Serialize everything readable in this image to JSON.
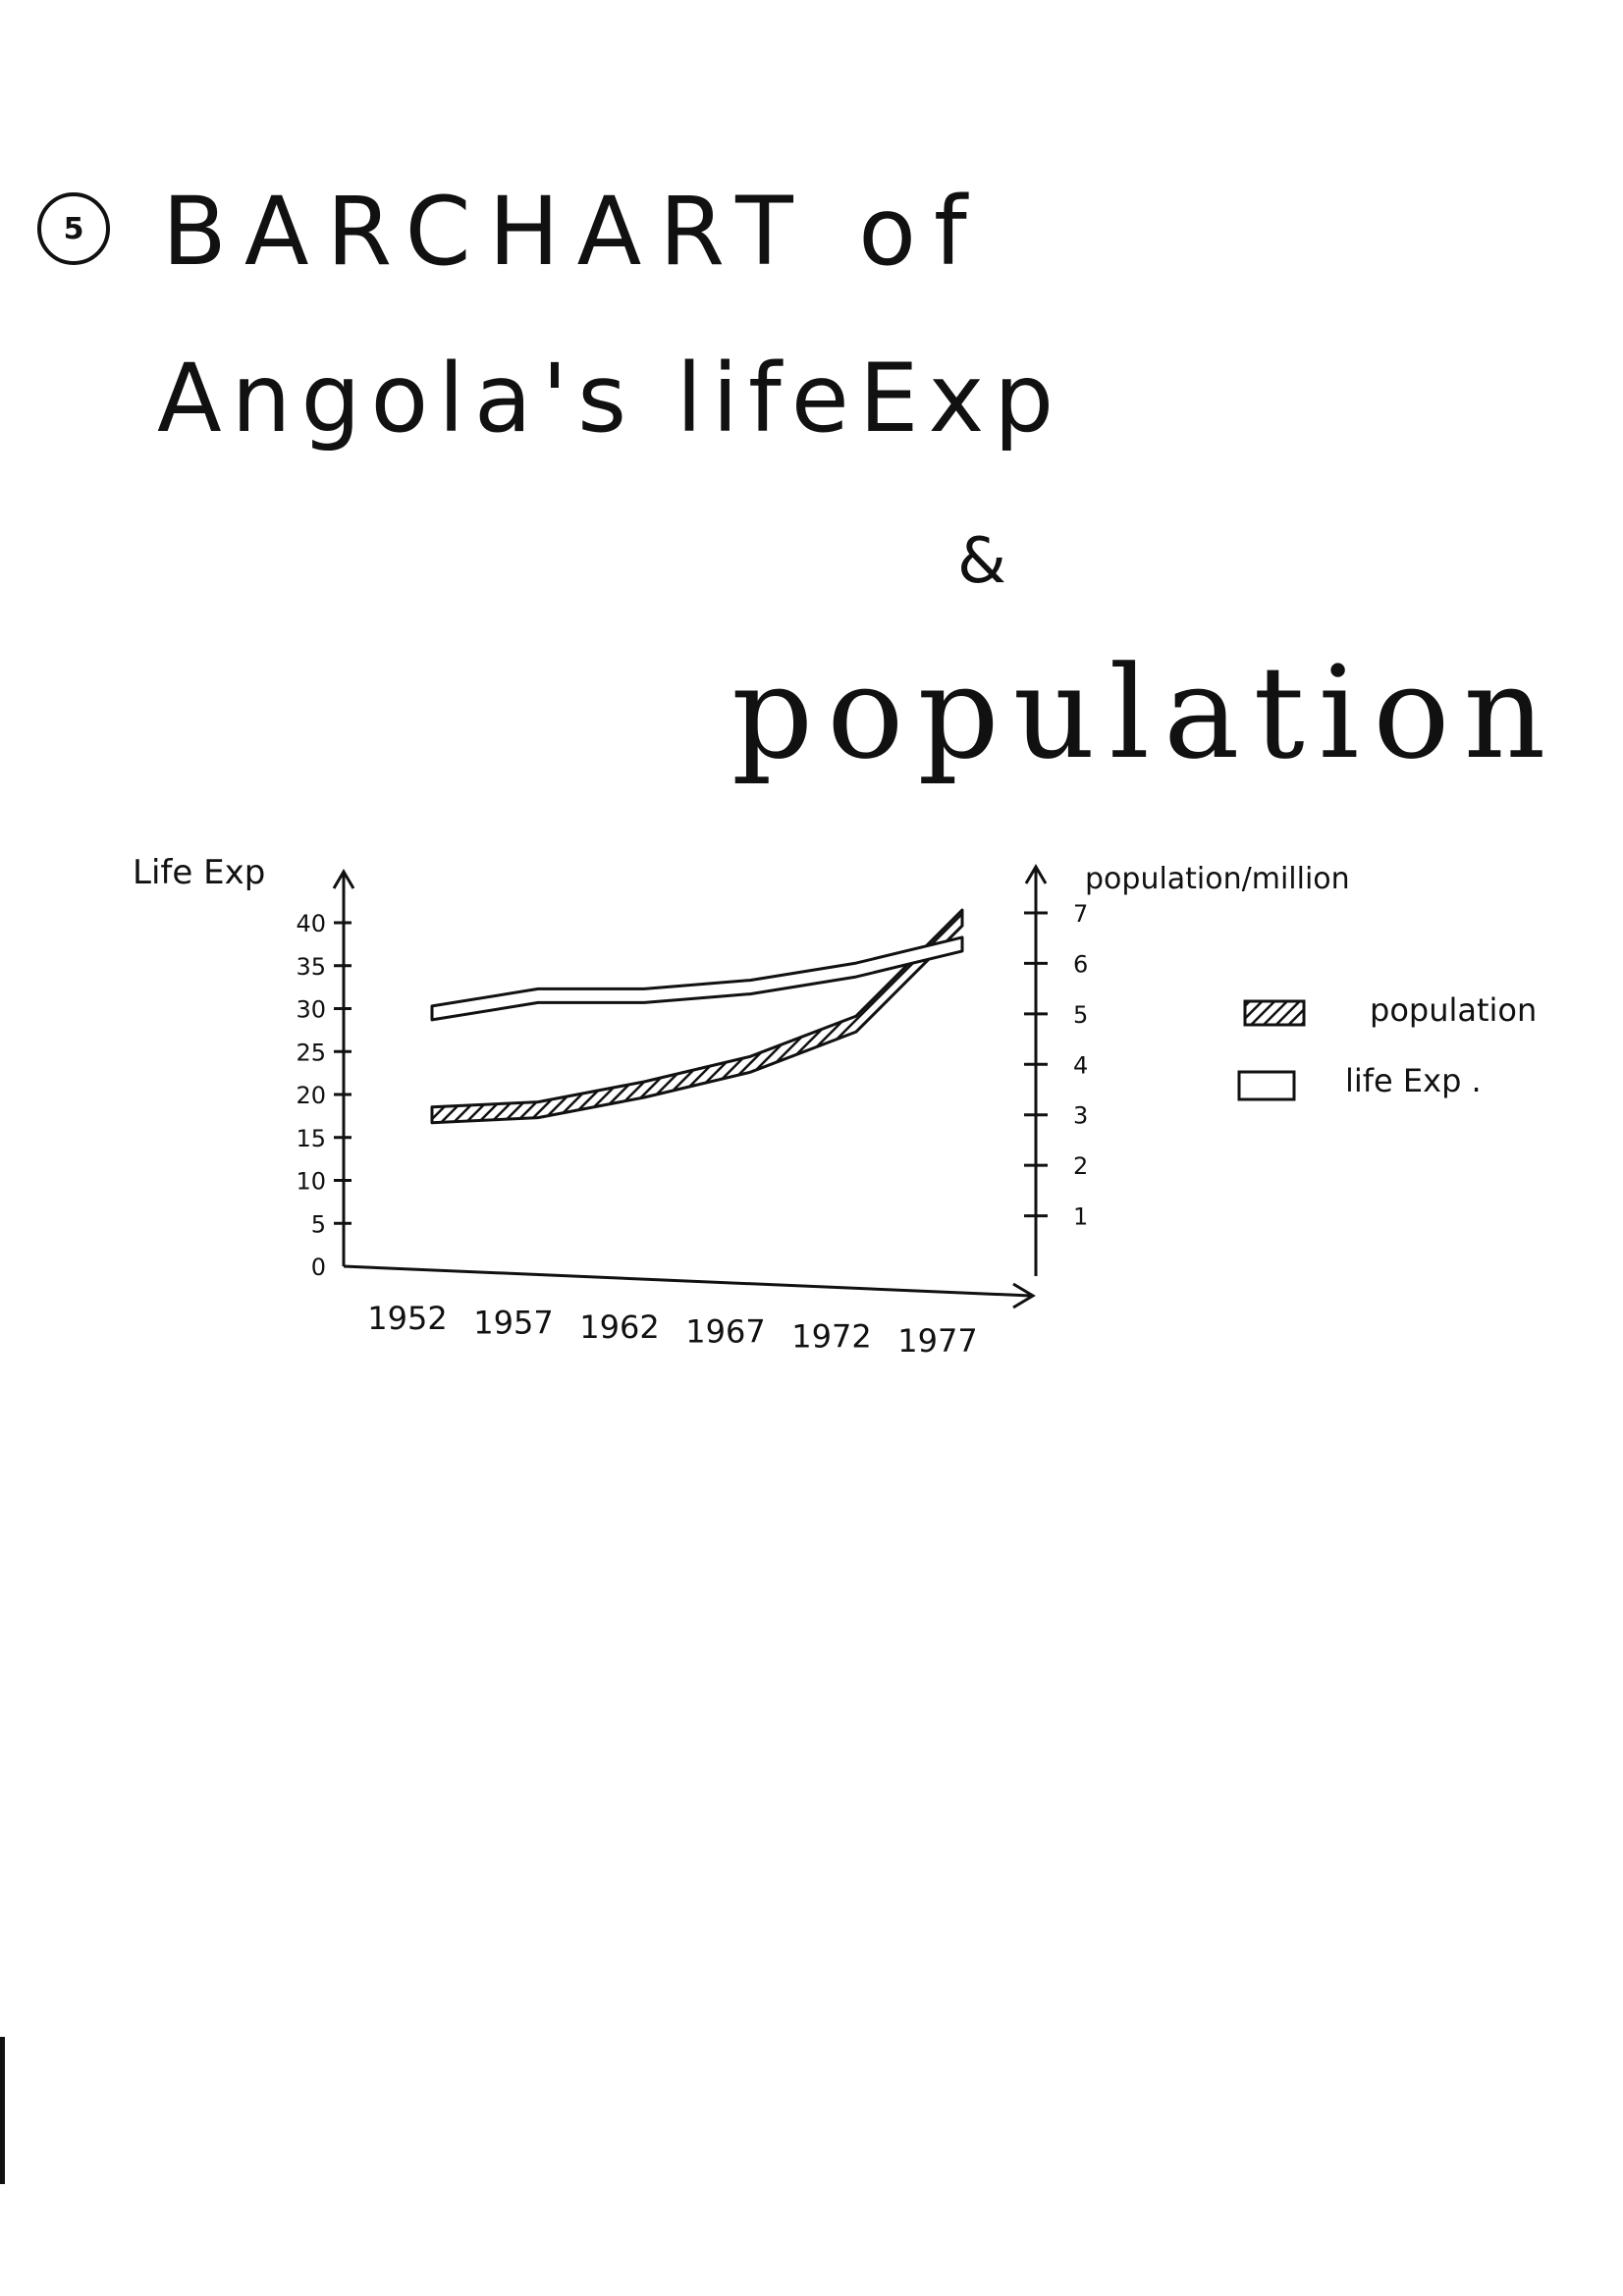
{
  "badge": "5",
  "title_lines": [
    "BARCHART of",
    "Angola's lifeExp",
    "&",
    "population"
  ],
  "chart_data": {
    "type": "area",
    "x": [
      1952,
      1957,
      1962,
      1967,
      1972,
      1977
    ],
    "series": [
      {
        "name": "population",
        "axis": "right",
        "fill": "hatched",
        "values": [
          3.0,
          3.1,
          3.5,
          4.0,
          4.8,
          6.9
        ]
      },
      {
        "name": "life Exp",
        "axis": "left",
        "fill": "empty",
        "values": [
          29.5,
          31.5,
          31.5,
          32.5,
          34.5,
          37.5
        ]
      }
    ],
    "ylabel_left": "Life Exp",
    "ylabel_right": "population/million",
    "yticks_left": [
      0,
      5,
      10,
      15,
      20,
      25,
      30,
      35,
      40
    ],
    "yticks_right": [
      1,
      2,
      3,
      4,
      5,
      6,
      7
    ],
    "ylim_left": [
      0,
      40
    ],
    "ylim_right": [
      0,
      7
    ],
    "legend": {
      "position": "right",
      "entries": [
        "population",
        "life Exp ."
      ]
    }
  }
}
